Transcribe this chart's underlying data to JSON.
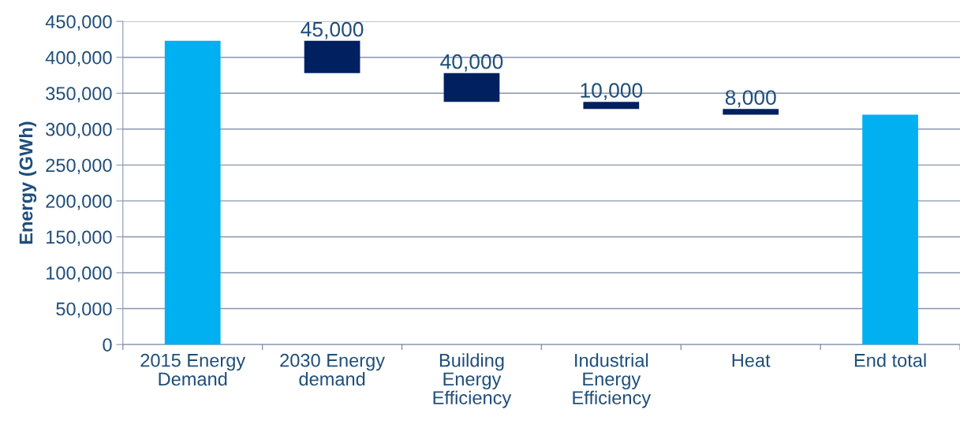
{
  "chart_data": {
    "type": "bar",
    "ylabel": "Energy (GWh)",
    "categories": [
      "2015 Energy Demand",
      "2030 Energy demand",
      "Building Energy Efficiency",
      "Industrial Energy Efficiency",
      "Heat",
      "End total"
    ],
    "values": [
      423000,
      45000,
      40000,
      10000,
      8000,
      320000
    ],
    "base": [
      0,
      378000,
      338000,
      328000,
      320000,
      0
    ],
    "colors": [
      "#00b0f0",
      "#002060",
      "#002060",
      "#002060",
      "#002060",
      "#00b0f0"
    ],
    "value_labels": [
      null,
      "45,000",
      "40,000",
      "10,000",
      "8,000",
      null
    ],
    "ylim": [
      0,
      450000
    ],
    "yticks": [
      {
        "value": 0,
        "label": "0"
      },
      {
        "value": 50000,
        "label": "50,000"
      },
      {
        "value": 100000,
        "label": "100,000"
      },
      {
        "value": 150000,
        "label": "150,000"
      },
      {
        "value": 200000,
        "label": "200,000"
      },
      {
        "value": 250000,
        "label": "250,000"
      },
      {
        "value": 300000,
        "label": "300,000"
      },
      {
        "value": 350000,
        "label": "350,000"
      },
      {
        "value": 400000,
        "label": "400,000"
      },
      {
        "value": 450000,
        "label": "450,000"
      }
    ],
    "grid": "y"
  }
}
